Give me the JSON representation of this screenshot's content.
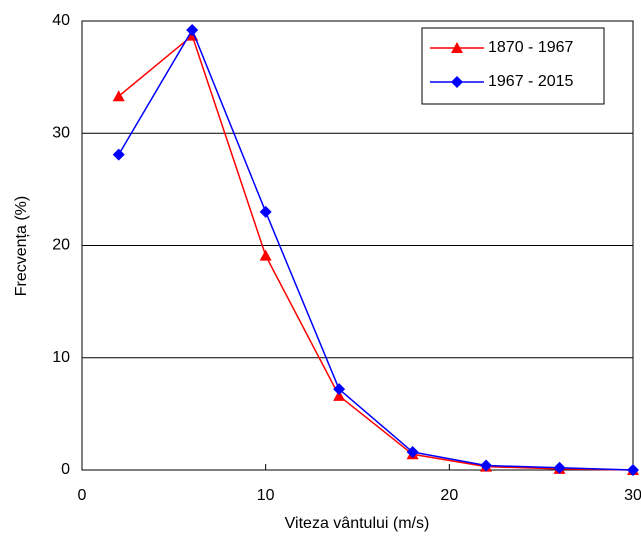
{
  "chart_data": {
    "type": "line",
    "x_label": "Viteza vântului (m/s)",
    "y_label": "Frecvența (%)",
    "x": [
      2,
      6,
      10,
      14,
      18,
      22,
      26,
      30
    ],
    "series": [
      {
        "name": "1870 - 1967",
        "color": "#ff0000",
        "marker": "triangle",
        "values": [
          33.3,
          38.7,
          19.1,
          6.6,
          1.4,
          0.3,
          0.1,
          0.0
        ]
      },
      {
        "name": "1967 - 2015",
        "color": "#0000ff",
        "marker": "diamond",
        "values": [
          28.1,
          39.2,
          23.0,
          7.2,
          1.6,
          0.4,
          0.2,
          0.0
        ]
      }
    ],
    "xlim": [
      0,
      30
    ],
    "xticks": [
      0,
      10,
      20,
      30
    ],
    "ylim": [
      0,
      40
    ],
    "yticks": [
      0,
      10,
      20,
      30,
      40
    ],
    "grid": true,
    "legend": "top-right"
  }
}
